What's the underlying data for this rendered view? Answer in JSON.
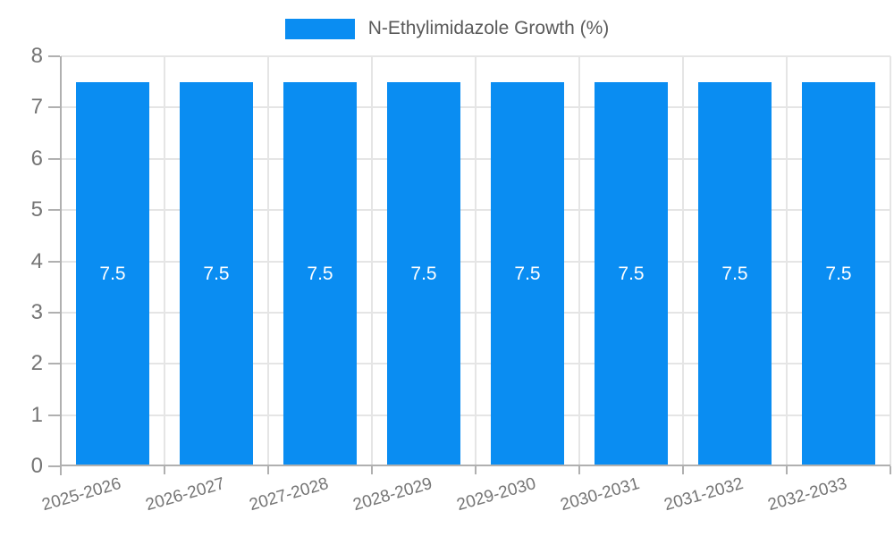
{
  "chart_data": {
    "type": "bar",
    "title": "N-Ethylimidazole Growth (%)",
    "categories": [
      "2025-2026",
      "2026-2027",
      "2027-2028",
      "2028-2029",
      "2029-2030",
      "2030-2031",
      "2031-2032",
      "2032-2033"
    ],
    "values": [
      7.5,
      7.5,
      7.5,
      7.5,
      7.5,
      7.5,
      7.5,
      7.5
    ],
    "value_labels": [
      "7.5",
      "7.5",
      "7.5",
      "7.5",
      "7.5",
      "7.5",
      "7.5",
      "7.5"
    ],
    "ylim": [
      0,
      8
    ],
    "yticks": [
      0,
      1,
      2,
      3,
      4,
      5,
      6,
      7,
      8
    ],
    "legend_position": "top",
    "grid": "on",
    "x_label_rotation_deg": -16,
    "colors": {
      "bar": "#0a8df2",
      "gridline": "#e5e5e5",
      "axis_line": "#b0b0b0",
      "tick_mark": "#b0b0b0",
      "tick_label": "#757575",
      "title_text": "#5a5a5a",
      "value_label": "#ffffff",
      "background": "#ffffff"
    }
  }
}
